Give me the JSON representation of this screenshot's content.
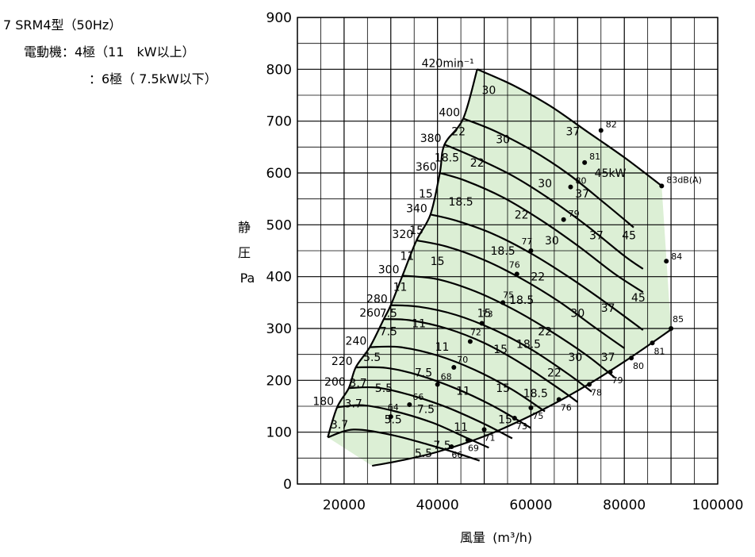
{
  "header": {
    "model": "7  SRM4型（50Hz）",
    "motor_label": "電動機：4極（11　kW以上）",
    "motor_label2": "：6極（ 7.5kW以下）"
  },
  "chart_data": {
    "type": "line",
    "title": "",
    "xlabel_main": "風量",
    "xlabel_unit": "(m³/h)",
    "ylabel_chars": [
      "静",
      "圧"
    ],
    "ylabel_unit": "Pa",
    "xlim": [
      10000,
      100000
    ],
    "ylim": [
      0,
      900
    ],
    "x_ticks": [
      20000,
      40000,
      60000,
      80000,
      100000
    ],
    "y_ticks": [
      0,
      100,
      200,
      300,
      400,
      500,
      600,
      700,
      800,
      900
    ],
    "grid": true,
    "region_color": "#dcefd5",
    "speed_curves": [
      {
        "label": "420min⁻¹",
        "points": [
          [
            48500,
            800
          ],
          [
            56000,
            770
          ],
          [
            64000,
            730
          ],
          [
            72000,
            680
          ],
          [
            80000,
            630
          ],
          [
            88000,
            575
          ]
        ]
      },
      {
        "label": "400",
        "points": [
          [
            45500,
            705
          ],
          [
            52000,
            682
          ],
          [
            60000,
            645
          ],
          [
            68000,
            598
          ],
          [
            76000,
            540
          ],
          [
            82000,
            495
          ]
        ]
      },
      {
        "label": "380",
        "points": [
          [
            41500,
            655
          ],
          [
            48000,
            630
          ],
          [
            56000,
            595
          ],
          [
            64000,
            550
          ],
          [
            72000,
            498
          ],
          [
            80000,
            440
          ],
          [
            84000,
            415
          ]
        ]
      },
      {
        "label": "360",
        "points": [
          [
            40500,
            600
          ],
          [
            46000,
            585
          ],
          [
            54000,
            553
          ],
          [
            62000,
            510
          ],
          [
            70000,
            460
          ],
          [
            78000,
            405
          ],
          [
            84000,
            370
          ]
        ]
      },
      {
        "label": "340",
        "points": [
          [
            38500,
            520
          ],
          [
            44000,
            508
          ],
          [
            52000,
            482
          ],
          [
            60000,
            445
          ],
          [
            68000,
            400
          ],
          [
            76000,
            350
          ],
          [
            84000,
            297
          ]
        ]
      },
      {
        "label": "320",
        "points": [
          [
            35500,
            470
          ],
          [
            42000,
            458
          ],
          [
            50000,
            432
          ],
          [
            58000,
            396
          ],
          [
            66000,
            352
          ],
          [
            74000,
            300
          ],
          [
            80000,
            262
          ]
        ]
      },
      {
        "label": "300",
        "points": [
          [
            32500,
            402
          ],
          [
            40000,
            395
          ],
          [
            48000,
            372
          ],
          [
            56000,
            338
          ],
          [
            64000,
            296
          ],
          [
            72000,
            248
          ],
          [
            78000,
            205
          ]
        ]
      },
      {
        "label": "280",
        "points": [
          [
            30000,
            345
          ],
          [
            36000,
            342
          ],
          [
            44000,
            326
          ],
          [
            52000,
            298
          ],
          [
            60000,
            260
          ],
          [
            68000,
            212
          ],
          [
            73000,
            178
          ]
        ]
      },
      {
        "label": "260",
        "points": [
          [
            28500,
            318
          ],
          [
            34000,
            316
          ],
          [
            42000,
            300
          ],
          [
            50000,
            272
          ],
          [
            58000,
            232
          ],
          [
            66000,
            184
          ],
          [
            70000,
            158
          ]
        ]
      },
      {
        "label": "240",
        "points": [
          [
            25500,
            264
          ],
          [
            32000,
            264
          ],
          [
            40000,
            248
          ],
          [
            48000,
            220
          ],
          [
            56000,
            182
          ],
          [
            63000,
            140
          ]
        ]
      },
      {
        "label": "220",
        "points": [
          [
            22500,
            225
          ],
          [
            29000,
            224
          ],
          [
            36000,
            210
          ],
          [
            44000,
            184
          ],
          [
            52000,
            150
          ],
          [
            60000,
            108
          ]
        ]
      },
      {
        "label": "200",
        "points": [
          [
            21000,
            185
          ],
          [
            27000,
            186
          ],
          [
            34000,
            172
          ],
          [
            42000,
            148
          ],
          [
            50000,
            116
          ],
          [
            56000,
            88
          ]
        ]
      },
      {
        "label": "180",
        "points": [
          [
            18500,
            148
          ],
          [
            24000,
            152
          ],
          [
            31000,
            140
          ],
          [
            39000,
            118
          ],
          [
            46000,
            90
          ],
          [
            51000,
            70
          ]
        ]
      },
      {
        "label": "",
        "points": [
          [
            16500,
            90
          ],
          [
            22000,
            105
          ],
          [
            30000,
            95
          ],
          [
            38000,
            76
          ],
          [
            44000,
            60
          ],
          [
            49000,
            45
          ]
        ]
      },
      {
        "label": "",
        "points": [
          [
            26000,
            35
          ],
          [
            32000,
            45
          ],
          [
            40000,
            62
          ],
          [
            50000,
            92
          ],
          [
            60000,
            132
          ],
          [
            70000,
            180
          ],
          [
            80000,
            236
          ],
          [
            90000,
            298
          ]
        ]
      }
    ],
    "power_labels": [
      {
        "text": "30",
        "x": 51000,
        "y": 760
      },
      {
        "text": "22",
        "x": 44500,
        "y": 680
      },
      {
        "text": "30",
        "x": 54000,
        "y": 665
      },
      {
        "text": "37",
        "x": 69000,
        "y": 680
      },
      {
        "text": "18.5",
        "x": 42000,
        "y": 630
      },
      {
        "text": "22",
        "x": 48500,
        "y": 620
      },
      {
        "text": "30",
        "x": 63000,
        "y": 580
      },
      {
        "text": "45kW",
        "x": 77000,
        "y": 600
      },
      {
        "text": "37",
        "x": 71000,
        "y": 560
      },
      {
        "text": "15",
        "x": 37500,
        "y": 560
      },
      {
        "text": "18.5",
        "x": 45000,
        "y": 545
      },
      {
        "text": "22",
        "x": 58000,
        "y": 520
      },
      {
        "text": "15",
        "x": 35500,
        "y": 490
      },
      {
        "text": "30",
        "x": 64500,
        "y": 470
      },
      {
        "text": "37",
        "x": 74000,
        "y": 480
      },
      {
        "text": "45",
        "x": 81000,
        "y": 480
      },
      {
        "text": "11",
        "x": 33500,
        "y": 440
      },
      {
        "text": "15",
        "x": 40000,
        "y": 430
      },
      {
        "text": "18.5",
        "x": 54000,
        "y": 450
      },
      {
        "text": "22",
        "x": 61500,
        "y": 400
      },
      {
        "text": "11",
        "x": 32000,
        "y": 380
      },
      {
        "text": "18.5",
        "x": 58000,
        "y": 355
      },
      {
        "text": "7.5",
        "x": 29500,
        "y": 330
      },
      {
        "text": "11",
        "x": 36000,
        "y": 310
      },
      {
        "text": "15",
        "x": 50000,
        "y": 330
      },
      {
        "text": "30",
        "x": 70000,
        "y": 330
      },
      {
        "text": "37",
        "x": 76500,
        "y": 340
      },
      {
        "text": "45",
        "x": 83000,
        "y": 360
      },
      {
        "text": "7.5",
        "x": 29500,
        "y": 295
      },
      {
        "text": "22",
        "x": 63000,
        "y": 295
      },
      {
        "text": "5.5",
        "x": 26000,
        "y": 245
      },
      {
        "text": "11",
        "x": 41000,
        "y": 265
      },
      {
        "text": "15",
        "x": 53500,
        "y": 260
      },
      {
        "text": "18.5",
        "x": 59500,
        "y": 270
      },
      {
        "text": "30",
        "x": 69500,
        "y": 245
      },
      {
        "text": "37",
        "x": 76500,
        "y": 245
      },
      {
        "text": "7.5",
        "x": 37000,
        "y": 215
      },
      {
        "text": "22",
        "x": 65000,
        "y": 215
      },
      {
        "text": "3.7",
        "x": 23000,
        "y": 195
      },
      {
        "text": "5.5",
        "x": 28500,
        "y": 185
      },
      {
        "text": "11",
        "x": 45500,
        "y": 180
      },
      {
        "text": "15",
        "x": 54000,
        "y": 185
      },
      {
        "text": "18.5",
        "x": 61000,
        "y": 175
      },
      {
        "text": "3.7",
        "x": 22000,
        "y": 155
      },
      {
        "text": "7.5",
        "x": 37500,
        "y": 145
      },
      {
        "text": "3.7",
        "x": 19000,
        "y": 115
      },
      {
        "text": "5.5",
        "x": 30500,
        "y": 125
      },
      {
        "text": "11",
        "x": 45000,
        "y": 110
      },
      {
        "text": "15",
        "x": 54500,
        "y": 125
      },
      {
        "text": "7.5",
        "x": 41000,
        "y": 75
      },
      {
        "text": "5.5",
        "x": 37000,
        "y": 60
      }
    ],
    "noise_points": [
      {
        "text": "82",
        "x": 75000,
        "y": 682,
        "dx": 6,
        "dy": -4
      },
      {
        "text": "81",
        "x": 71500,
        "y": 620,
        "dx": 6,
        "dy": -4
      },
      {
        "text": "83dB(A)",
        "x": 88000,
        "y": 575,
        "dx": 6,
        "dy": -4
      },
      {
        "text": "80",
        "x": 68500,
        "y": 573,
        "dx": 6,
        "dy": -4
      },
      {
        "text": "79",
        "x": 67000,
        "y": 510,
        "dx": 6,
        "dy": -4
      },
      {
        "text": "77",
        "x": 60000,
        "y": 450,
        "dx": -12,
        "dy": -8
      },
      {
        "text": "76",
        "x": 57000,
        "y": 405,
        "dx": -10,
        "dy": -8
      },
      {
        "text": "84",
        "x": 89000,
        "y": 430,
        "dx": 6,
        "dy": -2
      },
      {
        "text": "75",
        "x": 54000,
        "y": 350,
        "dx": 0,
        "dy": -6
      },
      {
        "text": "73",
        "x": 49500,
        "y": 310,
        "dx": 0,
        "dy": -8
      },
      {
        "text": "72",
        "x": 47000,
        "y": 275,
        "dx": 0,
        "dy": -8
      },
      {
        "text": "85",
        "x": 90000,
        "y": 300,
        "dx": 2,
        "dy": -8
      },
      {
        "text": "81",
        "x": 86000,
        "y": 272,
        "dx": 2,
        "dy": 14
      },
      {
        "text": "80",
        "x": 81500,
        "y": 243,
        "dx": 2,
        "dy": 14
      },
      {
        "text": "79",
        "x": 77000,
        "y": 216,
        "dx": 2,
        "dy": 14
      },
      {
        "text": "70",
        "x": 43500,
        "y": 225,
        "dx": 4,
        "dy": -6
      },
      {
        "text": "68",
        "x": 40000,
        "y": 192,
        "dx": 4,
        "dy": -6
      },
      {
        "text": "78",
        "x": 72500,
        "y": 192,
        "dx": 2,
        "dy": 14
      },
      {
        "text": "66",
        "x": 34000,
        "y": 153,
        "dx": 4,
        "dy": -6
      },
      {
        "text": "64",
        "x": 30000,
        "y": 130,
        "dx": -4,
        "dy": -8
      },
      {
        "text": "76",
        "x": 66000,
        "y": 163,
        "dx": 2,
        "dy": 14
      },
      {
        "text": "75",
        "x": 60000,
        "y": 147,
        "dx": 2,
        "dy": 14
      },
      {
        "text": "73",
        "x": 56500,
        "y": 127,
        "dx": 2,
        "dy": 14
      },
      {
        "text": "71",
        "x": 50000,
        "y": 105,
        "dx": 0,
        "dy": 14
      },
      {
        "text": "69",
        "x": 46500,
        "y": 85,
        "dx": 0,
        "dy": 14
      },
      {
        "text": "66",
        "x": 43000,
        "y": 72,
        "dx": 0,
        "dy": 14
      }
    ]
  }
}
